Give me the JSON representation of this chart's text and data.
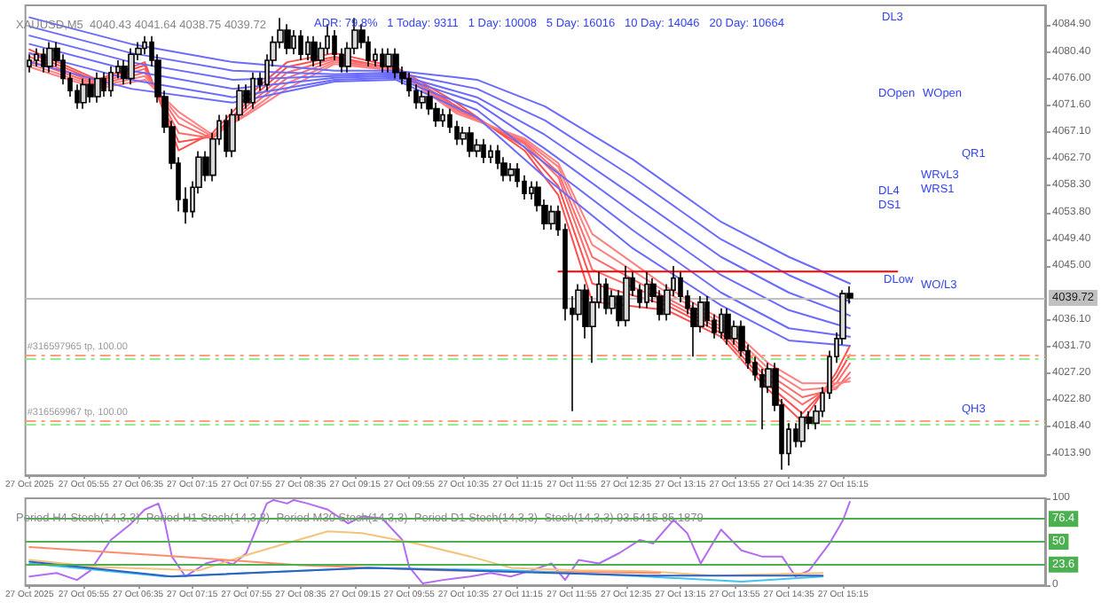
{
  "chart_data": [
    {
      "type": "candlestick",
      "title": "XAUUSD,M5  4040.43 4041.64 4038.75 4039.72",
      "subtitle": "ADR: 79.8%   1 Today: 9311   1 Day: 10008   5 Day: 16016   10 Day: 14046   20 Day: 10664",
      "color": "#000000",
      "grid": false,
      "marker": "none",
      "xlim": [
        "2025-10-27T05:12",
        "2025-10-27T17:44"
      ],
      "xticks": [
        {
          "value": "2025-10-27T05:15",
          "label": "27 Oct 2025"
        },
        {
          "value": "2025-10-27T05:55",
          "label": "27 Oct 05:55"
        },
        {
          "value": "2025-10-27T06:35",
          "label": "27 Oct 06:35"
        },
        {
          "value": "2025-10-27T07:15",
          "label": "27 Oct 07:15"
        },
        {
          "value": "2025-10-27T07:55",
          "label": "27 Oct 07:55"
        },
        {
          "value": "2025-10-27T08:35",
          "label": "27 Oct 08:35"
        },
        {
          "value": "2025-10-27T09:15",
          "label": "27 Oct 09:15"
        },
        {
          "value": "2025-10-27T09:55",
          "label": "27 Oct 09:55"
        },
        {
          "value": "2025-10-27T10:35",
          "label": "27 Oct 10:35"
        },
        {
          "value": "2025-10-27T11:15",
          "label": "27 Oct 11:15"
        },
        {
          "value": "2025-10-27T11:55",
          "label": "27 Oct 11:55"
        },
        {
          "value": "2025-10-27T12:35",
          "label": "27 Oct 12:35"
        },
        {
          "value": "2025-10-27T13:15",
          "label": "27 Oct 13:15"
        },
        {
          "value": "2025-10-27T13:55",
          "label": "27 Oct 13:55"
        },
        {
          "value": "2025-10-27T14:35",
          "label": "27 Oct 14:35"
        },
        {
          "value": "2025-10-27T15:15",
          "label": "27 Oct 15:15"
        }
      ],
      "ylim": [
        4010.4,
        4088.1
      ],
      "yticks": [
        {
          "value": 4013.9,
          "label": "4013.90"
        },
        {
          "value": 4018.4,
          "label": "4018.40"
        },
        {
          "value": 4022.8,
          "label": "4022.80"
        },
        {
          "value": 4027.2,
          "label": "4027.20"
        },
        {
          "value": 4031.7,
          "label": "4031.70"
        },
        {
          "value": 4036.1,
          "label": "4036.10"
        },
        {
          "value": 4045,
          "label": "4045.00"
        },
        {
          "value": 4049.4,
          "label": "4049.40"
        },
        {
          "value": 4053.8,
          "label": "4053.80"
        },
        {
          "value": 4058.3,
          "label": "4058.30"
        },
        {
          "value": 4062.7,
          "label": "4062.70"
        },
        {
          "value": 4067.1,
          "label": "4067.10"
        },
        {
          "value": 4071.6,
          "label": "4071.60"
        },
        {
          "value": 4076,
          "label": "4076.00"
        },
        {
          "value": 4080.4,
          "label": "4080.40"
        },
        {
          "value": 4084.9,
          "label": "4084.90"
        }
      ],
      "x": [
        "2025-10-27T05:15",
        "2025-10-27T05:20",
        "2025-10-27T05:25",
        "2025-10-27T05:30",
        "2025-10-27T05:35",
        "2025-10-27T05:40",
        "2025-10-27T05:45",
        "2025-10-27T05:50",
        "2025-10-27T05:55",
        "2025-10-27T06:00",
        "2025-10-27T06:05",
        "2025-10-27T06:10",
        "2025-10-27T06:15",
        "2025-10-27T06:20",
        "2025-10-27T06:25",
        "2025-10-27T06:30",
        "2025-10-27T06:35",
        "2025-10-27T06:40",
        "2025-10-27T06:45",
        "2025-10-27T06:50",
        "2025-10-27T06:55",
        "2025-10-27T07:00",
        "2025-10-27T07:05",
        "2025-10-27T07:10",
        "2025-10-27T07:15",
        "2025-10-27T07:20",
        "2025-10-27T07:25",
        "2025-10-27T07:30",
        "2025-10-27T07:35",
        "2025-10-27T07:40",
        "2025-10-27T07:45",
        "2025-10-27T07:50",
        "2025-10-27T07:55",
        "2025-10-27T08:00",
        "2025-10-27T08:05",
        "2025-10-27T08:10",
        "2025-10-27T08:15",
        "2025-10-27T08:20",
        "2025-10-27T08:25",
        "2025-10-27T08:30",
        "2025-10-27T08:35",
        "2025-10-27T08:40",
        "2025-10-27T08:45",
        "2025-10-27T08:50",
        "2025-10-27T08:55",
        "2025-10-27T09:00",
        "2025-10-27T09:05",
        "2025-10-27T09:10",
        "2025-10-27T09:15",
        "2025-10-27T09:20",
        "2025-10-27T09:25",
        "2025-10-27T09:30",
        "2025-10-27T09:35",
        "2025-10-27T09:40",
        "2025-10-27T09:45",
        "2025-10-27T09:50",
        "2025-10-27T09:55",
        "2025-10-27T10:00",
        "2025-10-27T10:05",
        "2025-10-27T10:10",
        "2025-10-27T10:15",
        "2025-10-27T10:20",
        "2025-10-27T10:25",
        "2025-10-27T10:30",
        "2025-10-27T10:35",
        "2025-10-27T10:40",
        "2025-10-27T10:45",
        "2025-10-27T10:50",
        "2025-10-27T10:55",
        "2025-10-27T11:00",
        "2025-10-27T11:05",
        "2025-10-27T11:10",
        "2025-10-27T11:15",
        "2025-10-27T11:20",
        "2025-10-27T11:25",
        "2025-10-27T11:30",
        "2025-10-27T11:35",
        "2025-10-27T11:40",
        "2025-10-27T11:45",
        "2025-10-27T11:50",
        "2025-10-27T11:55",
        "2025-10-27T12:00",
        "2025-10-27T12:05",
        "2025-10-27T12:10",
        "2025-10-27T12:15",
        "2025-10-27T12:20",
        "2025-10-27T12:25",
        "2025-10-27T12:30",
        "2025-10-27T12:35",
        "2025-10-27T12:40",
        "2025-10-27T12:45",
        "2025-10-27T12:50",
        "2025-10-27T12:55",
        "2025-10-27T13:00",
        "2025-10-27T13:05",
        "2025-10-27T13:10",
        "2025-10-27T13:15",
        "2025-10-27T13:20",
        "2025-10-27T13:25",
        "2025-10-27T13:30",
        "2025-10-27T13:35",
        "2025-10-27T13:40",
        "2025-10-27T13:45",
        "2025-10-27T13:50",
        "2025-10-27T13:55",
        "2025-10-27T14:00",
        "2025-10-27T14:05",
        "2025-10-27T14:10",
        "2025-10-27T14:15",
        "2025-10-27T14:20",
        "2025-10-27T14:25",
        "2025-10-27T14:30",
        "2025-10-27T14:35",
        "2025-10-27T14:40",
        "2025-10-27T14:45",
        "2025-10-27T14:50",
        "2025-10-27T14:55",
        "2025-10-27T15:00",
        "2025-10-27T15:05",
        "2025-10-27T15:10",
        "2025-10-27T15:15",
        "2025-10-27T15:20"
      ],
      "ohlc": [
        [
          4078,
          4080,
          4077,
          4079
        ],
        [
          4079,
          4081,
          4078,
          4080
        ],
        [
          4080,
          4081,
          4077,
          4078
        ],
        [
          4078,
          4082,
          4077,
          4081
        ],
        [
          4081,
          4082,
          4078,
          4079
        ],
        [
          4079,
          4080,
          4075,
          4076
        ],
        [
          4076,
          4077,
          4073,
          4074
        ],
        [
          4074,
          4075,
          4071,
          4072
        ],
        [
          4072,
          4076,
          4071,
          4075
        ],
        [
          4075,
          4076,
          4072,
          4073
        ],
        [
          4073,
          4077,
          4072,
          4076
        ],
        [
          4076,
          4077,
          4073,
          4074
        ],
        [
          4074,
          4078,
          4073,
          4077
        ],
        [
          4077,
          4079,
          4076,
          4078
        ],
        [
          4078,
          4079,
          4075,
          4076
        ],
        [
          4076,
          4081,
          4075,
          4080
        ],
        [
          4080,
          4082,
          4079,
          4081
        ],
        [
          4081,
          4083,
          4080,
          4082
        ],
        [
          4082,
          4083,
          4078,
          4079
        ],
        [
          4079,
          4080,
          4072,
          4073
        ],
        [
          4073,
          4074,
          4067,
          4068
        ],
        [
          4068,
          4069,
          4061,
          4062
        ],
        [
          4062,
          4063,
          4054,
          4056
        ],
        [
          4056,
          4058,
          4052,
          4054
        ],
        [
          4054,
          4059,
          4053,
          4058
        ],
        [
          4058,
          4064,
          4057,
          4063
        ],
        [
          4063,
          4064,
          4059,
          4060
        ],
        [
          4060,
          4067,
          4059,
          4066
        ],
        [
          4066,
          4070,
          4065,
          4069
        ],
        [
          4069,
          4070,
          4063,
          4064
        ],
        [
          4064,
          4071,
          4063,
          4070
        ],
        [
          4070,
          4075,
          4069,
          4074
        ],
        [
          4074,
          4075,
          4071,
          4072
        ],
        [
          4072,
          4077,
          4071,
          4076
        ],
        [
          4076,
          4077,
          4074,
          4075
        ],
        [
          4075,
          4080,
          4074,
          4079
        ],
        [
          4079,
          4083,
          4078,
          4082
        ],
        [
          4082,
          4086,
          4081,
          4084
        ],
        [
          4084,
          4085,
          4080,
          4081
        ],
        [
          4081,
          4084,
          4080,
          4083
        ],
        [
          4083,
          4084,
          4079,
          4080
        ],
        [
          4080,
          4083,
          4079,
          4082
        ],
        [
          4082,
          4083,
          4078,
          4079
        ],
        [
          4079,
          4082,
          4078,
          4081
        ],
        [
          4081,
          4085,
          4080,
          4083
        ],
        [
          4083,
          4084,
          4079,
          4080
        ],
        [
          4080,
          4081,
          4077,
          4078
        ],
        [
          4078,
          4082,
          4077,
          4081
        ],
        [
          4081,
          4086,
          4080,
          4084
        ],
        [
          4084,
          4085,
          4081,
          4082
        ],
        [
          4082,
          4083,
          4078,
          4079
        ],
        [
          4079,
          4081,
          4078,
          4080
        ],
        [
          4080,
          4081,
          4077,
          4078
        ],
        [
          4078,
          4081,
          4077,
          4080
        ],
        [
          4080,
          4081,
          4076,
          4077
        ],
        [
          4077,
          4078,
          4075,
          4076
        ],
        [
          4076,
          4077,
          4073,
          4074
        ],
        [
          4074,
          4075,
          4071,
          4072
        ],
        [
          4072,
          4074,
          4071,
          4073
        ],
        [
          4073,
          4074,
          4070,
          4071
        ],
        [
          4071,
          4072,
          4068,
          4069
        ],
        [
          4069,
          4071,
          4068,
          4070
        ],
        [
          4070,
          4071,
          4067,
          4068
        ],
        [
          4068,
          4069,
          4065,
          4066
        ],
        [
          4066,
          4068,
          4065,
          4067
        ],
        [
          4067,
          4068,
          4063,
          4064
        ],
        [
          4064,
          4066,
          4063,
          4065
        ],
        [
          4065,
          4066,
          4062,
          4063
        ],
        [
          4063,
          4065,
          4062,
          4064
        ],
        [
          4064,
          4065,
          4061,
          4062
        ],
        [
          4062,
          4063,
          4059,
          4060
        ],
        [
          4060,
          4062,
          4059,
          4061
        ],
        [
          4061,
          4062,
          4058,
          4059
        ],
        [
          4059,
          4060,
          4056,
          4057
        ],
        [
          4057,
          4059,
          4056,
          4058
        ],
        [
          4058,
          4059,
          4054,
          4055
        ],
        [
          4055,
          4056,
          4051,
          4052
        ],
        [
          4052,
          4055,
          4051,
          4054
        ],
        [
          4054,
          4055,
          4050,
          4051
        ],
        [
          4051,
          4052,
          4036,
          4038
        ],
        [
          4038,
          4040,
          4021,
          4037
        ],
        [
          4037,
          4042,
          4036,
          4041
        ],
        [
          4041,
          4042,
          4033,
          4035
        ],
        [
          4035,
          4040,
          4029,
          4039
        ],
        [
          4039,
          4044,
          4038,
          4042
        ],
        [
          4042,
          4043,
          4037,
          4038
        ],
        [
          4038,
          4041,
          4037,
          4040
        ],
        [
          4040,
          4041,
          4035,
          4036
        ],
        [
          4036,
          4045,
          4035,
          4043
        ],
        [
          4043,
          4044,
          4040,
          4041
        ],
        [
          4041,
          4042,
          4038,
          4039
        ],
        [
          4039,
          4044,
          4038,
          4042
        ],
        [
          4042,
          4043,
          4039,
          4040
        ],
        [
          4040,
          4041,
          4036,
          4037
        ],
        [
          4037,
          4042,
          4036,
          4041
        ],
        [
          4041,
          4045,
          4040,
          4043
        ],
        [
          4043,
          4044,
          4039,
          4040
        ],
        [
          4040,
          4041,
          4037,
          4038
        ],
        [
          4038,
          4039,
          4030,
          4035
        ],
        [
          4035,
          4040,
          4034,
          4039
        ],
        [
          4039,
          4040,
          4035,
          4036
        ],
        [
          4036,
          4037,
          4033,
          4034
        ],
        [
          4034,
          4038,
          4033,
          4037
        ],
        [
          4037,
          4038,
          4032,
          4033
        ],
        [
          4033,
          4036,
          4032,
          4035
        ],
        [
          4035,
          4036,
          4030,
          4031
        ],
        [
          4031,
          4032,
          4028,
          4029
        ],
        [
          4029,
          4030,
          4026,
          4027
        ],
        [
          4027,
          4028,
          4018,
          4025
        ],
        [
          4025,
          4029,
          4024,
          4028
        ],
        [
          4028,
          4029,
          4021,
          4022
        ],
        [
          4022,
          4023,
          4011.3,
          4014
        ],
        [
          4014,
          4019,
          4012,
          4018
        ],
        [
          4018,
          4019,
          4015,
          4016
        ],
        [
          4016,
          4021,
          4015,
          4020
        ],
        [
          4020,
          4021,
          4018,
          4019
        ],
        [
          4019,
          4022,
          4018,
          4021
        ],
        [
          4021,
          4025,
          4020,
          4024
        ],
        [
          4024,
          4031,
          4023,
          4030
        ],
        [
          4030,
          4034,
          4029,
          4033
        ],
        [
          4033,
          4041,
          4032,
          4040.43
        ],
        [
          4040.43,
          4041.64,
          4038.75,
          4039.72
        ]
      ],
      "series": [
        {
          "type": "line",
          "color": "#ff5050",
          "x": [
            "2025-10-27T05:15",
            "2025-10-27T06:05",
            "2025-10-27T06:40",
            "2025-10-27T07:05",
            "2025-10-27T07:30",
            "2025-10-27T07:55",
            "2025-10-27T08:25",
            "2025-10-27T09:00",
            "2025-10-27T09:45",
            "2025-10-27T10:30",
            "2025-10-27T11:20",
            "2025-10-27T11:45",
            "2025-10-27T12:10",
            "2025-10-27T13:05",
            "2025-10-27T13:45",
            "2025-10-27T14:20",
            "2025-10-27T14:45",
            "2025-10-27T15:10",
            "2025-10-27T15:20"
          ],
          "values": [
            4080.8,
            4075.8,
            4078.7,
            4064.1,
            4067.0,
            4072.9,
            4078.7,
            4080.2,
            4077.9,
            4072.0,
            4064.1,
            4056.7,
            4039.1,
            4037.7,
            4033.3,
            4024.5,
            4019.2,
            4027.4,
            4031.8
          ]
        },
        {
          "type": "line",
          "color": "#ff5050",
          "x": [
            "2025-10-27T05:15",
            "2025-10-27T06:05",
            "2025-10-27T06:40",
            "2025-10-27T07:05",
            "2025-10-27T07:30",
            "2025-10-27T07:55",
            "2025-10-27T08:25",
            "2025-10-27T09:00",
            "2025-10-27T09:45",
            "2025-10-27T10:30",
            "2025-10-27T11:20",
            "2025-10-27T11:45",
            "2025-10-27T12:10",
            "2025-10-27T13:05",
            "2025-10-27T13:45",
            "2025-10-27T14:20",
            "2025-10-27T14:45",
            "2025-10-27T15:10",
            "2025-10-27T15:20"
          ],
          "values": [
            4080.2,
            4075.5,
            4078.2,
            4065.5,
            4066.4,
            4072.0,
            4077.9,
            4079.6,
            4077.6,
            4071.4,
            4064.7,
            4058.2,
            4042.1,
            4038.5,
            4033.9,
            4025.3,
            4020.6,
            4026.5,
            4030.3
          ]
        },
        {
          "type": "line",
          "color": "#ff6a6a",
          "x": [
            "2025-10-27T05:15",
            "2025-10-27T06:05",
            "2025-10-27T06:40",
            "2025-10-27T07:05",
            "2025-10-27T07:30",
            "2025-10-27T07:55",
            "2025-10-27T08:25",
            "2025-10-27T09:00",
            "2025-10-27T09:45",
            "2025-10-27T10:30",
            "2025-10-27T11:20",
            "2025-10-27T11:45",
            "2025-10-27T12:10",
            "2025-10-27T13:05",
            "2025-10-27T13:45",
            "2025-10-27T14:20",
            "2025-10-27T14:45",
            "2025-10-27T15:10",
            "2025-10-27T15:20"
          ],
          "values": [
            4079.6,
            4075.2,
            4077.6,
            4067.0,
            4066.1,
            4071.4,
            4077.0,
            4079.3,
            4077.6,
            4071.1,
            4065.2,
            4059.7,
            4044.4,
            4039.1,
            4034.5,
            4026.2,
            4022.1,
            4025.6,
            4028.9
          ]
        },
        {
          "type": "line",
          "color": "#ff6a6a",
          "x": [
            "2025-10-27T05:15",
            "2025-10-27T06:05",
            "2025-10-27T06:40",
            "2025-10-27T07:05",
            "2025-10-27T07:30",
            "2025-10-27T07:55",
            "2025-10-27T08:25",
            "2025-10-27T09:00",
            "2025-10-27T09:45",
            "2025-10-27T10:30",
            "2025-10-27T11:20",
            "2025-10-27T11:45",
            "2025-10-27T12:10",
            "2025-10-27T13:05",
            "2025-10-27T13:45",
            "2025-10-27T14:20",
            "2025-10-27T14:45",
            "2025-10-27T15:10",
            "2025-10-27T15:20"
          ],
          "values": [
            4079.0,
            4074.9,
            4077.0,
            4068.5,
            4066.1,
            4070.8,
            4076.1,
            4079.0,
            4077.3,
            4070.8,
            4065.5,
            4060.5,
            4046.5,
            4039.7,
            4035.0,
            4027.1,
            4023.3,
            4024.7,
            4027.4
          ]
        },
        {
          "type": "line",
          "color": "#ff8080",
          "x": [
            "2025-10-27T05:15",
            "2025-10-27T06:05",
            "2025-10-27T06:40",
            "2025-10-27T07:05",
            "2025-10-27T07:30",
            "2025-10-27T07:55",
            "2025-10-27T08:25",
            "2025-10-27T09:00",
            "2025-10-27T09:45",
            "2025-10-27T10:30",
            "2025-10-27T11:20",
            "2025-10-27T11:45",
            "2025-10-27T12:10",
            "2025-10-27T13:05",
            "2025-10-27T13:45",
            "2025-10-27T14:20",
            "2025-10-27T14:45",
            "2025-10-27T15:10",
            "2025-10-27T15:20"
          ],
          "values": [
            4078.4,
            4074.6,
            4076.4,
            4069.6,
            4066.4,
            4070.2,
            4075.2,
            4078.7,
            4077.3,
            4070.5,
            4065.8,
            4061.4,
            4048.5,
            4040.6,
            4035.6,
            4028.0,
            4024.5,
            4025.0,
            4026.5
          ]
        },
        {
          "type": "line",
          "color": "#ff8080",
          "x": [
            "2025-10-27T05:15",
            "2025-10-27T06:05",
            "2025-10-27T06:40",
            "2025-10-27T07:05",
            "2025-10-27T07:30",
            "2025-10-27T07:55",
            "2025-10-27T08:25",
            "2025-10-27T09:00",
            "2025-10-27T09:45",
            "2025-10-27T10:30",
            "2025-10-27T11:20",
            "2025-10-27T11:45",
            "2025-10-27T12:10",
            "2025-10-27T13:05",
            "2025-10-27T13:45",
            "2025-10-27T14:20",
            "2025-10-27T14:45",
            "2025-10-27T15:10",
            "2025-10-27T15:20"
          ],
          "values": [
            4077.9,
            4074.3,
            4075.8,
            4070.5,
            4066.7,
            4069.9,
            4074.3,
            4078.4,
            4077.3,
            4070.2,
            4066.1,
            4062.0,
            4050.3,
            4041.5,
            4036.2,
            4028.9,
            4025.6,
            4025.6,
            4025.9
          ]
        },
        {
          "type": "line",
          "color": "#6a6aff",
          "x": [
            "2025-10-27T05:15",
            "2025-10-27T06:30",
            "2025-10-27T07:45",
            "2025-10-27T09:00",
            "2025-10-27T09:45",
            "2025-10-27T10:45",
            "2025-10-27T11:35",
            "2025-10-27T12:40",
            "2025-10-27T13:45",
            "2025-10-27T14:35",
            "2025-10-27T15:20"
          ],
          "values": [
            4086.1,
            4081.7,
            4078.7,
            4077.3,
            4077.3,
            4075.8,
            4071.4,
            4062.6,
            4052.3,
            4046.5,
            4042.1
          ]
        },
        {
          "type": "line",
          "color": "#6a6aff",
          "x": [
            "2025-10-27T05:15",
            "2025-10-27T06:30",
            "2025-10-27T07:45",
            "2025-10-27T09:00",
            "2025-10-27T09:45",
            "2025-10-27T10:45",
            "2025-10-27T11:35",
            "2025-10-27T12:40",
            "2025-10-27T13:45",
            "2025-10-27T14:35",
            "2025-10-27T15:20"
          ],
          "values": [
            4084.6,
            4080.2,
            4077.3,
            4076.7,
            4077.0,
            4074.3,
            4069.1,
            4059.7,
            4049.4,
            4043.5,
            4039.1
          ]
        },
        {
          "type": "line",
          "color": "#6a6aff",
          "x": [
            "2025-10-27T05:15",
            "2025-10-27T06:30",
            "2025-10-27T07:45",
            "2025-10-27T09:00",
            "2025-10-27T09:45",
            "2025-10-27T10:45",
            "2025-10-27T11:35",
            "2025-10-27T12:40",
            "2025-10-27T13:45",
            "2025-10-27T14:35",
            "2025-10-27T15:20"
          ],
          "values": [
            4083.1,
            4078.7,
            4075.8,
            4076.4,
            4076.7,
            4072.9,
            4066.7,
            4056.7,
            4046.5,
            4040.6,
            4036.8
          ]
        },
        {
          "type": "line",
          "color": "#6a6aff",
          "x": [
            "2025-10-27T05:15",
            "2025-10-27T06:30",
            "2025-10-27T07:45",
            "2025-10-27T09:00",
            "2025-10-27T09:45",
            "2025-10-27T10:45",
            "2025-10-27T11:35",
            "2025-10-27T12:40",
            "2025-10-27T13:45",
            "2025-10-27T14:35",
            "2025-10-27T15:20"
          ],
          "values": [
            4081.7,
            4077.3,
            4074.3,
            4076.1,
            4076.4,
            4072.0,
            4064.4,
            4053.8,
            4043.5,
            4037.7,
            4034.7
          ]
        },
        {
          "type": "line",
          "color": "#6a6aff",
          "x": [
            "2025-10-27T05:15",
            "2025-10-27T06:30",
            "2025-10-27T07:45",
            "2025-10-27T09:00",
            "2025-10-27T09:45",
            "2025-10-27T10:45",
            "2025-10-27T11:35",
            "2025-10-27T12:40",
            "2025-10-27T13:45",
            "2025-10-27T14:35",
            "2025-10-27T15:20"
          ],
          "values": [
            4080.2,
            4075.8,
            4072.9,
            4075.8,
            4076.1,
            4070.8,
            4062.0,
            4050.9,
            4040.6,
            4034.7,
            4033.3
          ]
        },
        {
          "type": "line",
          "color": "#6a6aff",
          "x": [
            "2025-10-27T05:15",
            "2025-10-27T06:30",
            "2025-10-27T07:45",
            "2025-10-27T09:00",
            "2025-10-27T09:45",
            "2025-10-27T10:45",
            "2025-10-27T11:35",
            "2025-10-27T12:40",
            "2025-10-27T13:45",
            "2025-10-27T14:35",
            "2025-10-27T15:20"
          ],
          "values": [
            4078.7,
            4074.3,
            4072.0,
            4075.5,
            4075.8,
            4069.6,
            4059.7,
            4047.9,
            4038.5,
            4032.7,
            4031.8
          ]
        },
        {
          "type": "line",
          "color": "#ff0000",
          "x": [
            "2025-10-27T11:45",
            "2025-10-27T15:55"
          ],
          "values": [
            4044.1,
            4044.1
          ]
        }
      ],
      "ref_lines": [
        {
          "axis": "y",
          "value": 4039.72,
          "label": "4039.72",
          "color": "#c0c0c0",
          "line_style": "solid"
        },
        {
          "axis": "y",
          "value": 4030.3,
          "label": "#316597965 tp, 100.00",
          "color": "#ffa07a",
          "line_style": "dashed"
        },
        {
          "axis": "y",
          "value": 4029.6,
          "label": null,
          "color": "#90ee90",
          "line_style": "dashed"
        },
        {
          "axis": "y",
          "value": 4019.5,
          "label": "#316569967 tp, 100.00",
          "color": "#ffa07a",
          "line_style": "dashed"
        },
        {
          "axis": "y",
          "value": 4018.8,
          "label": null,
          "color": "#90ee90",
          "line_style": "dashed"
        }
      ],
      "annotations": [
        "DL3",
        "DOpen",
        "WOpen",
        "QR1",
        "WRvL3",
        "WRS1",
        "DL4",
        "DS1",
        {
          "text": "DLow",
          "x": "2025-10-27T15:45",
          "y": 4042.7
        },
        "WO/L3",
        "QH3"
      ]
    },
    {
      "type": "line",
      "title": "Period H4 Stoch(14,3,3)  Period H1 Stoch(14,3,3)  Period M30 Stoch(14,3,3)  Period D1 Stoch(14,3,3)  Stoch(14,3,3) 93.5415 85.1879",
      "grid": false,
      "marker": "none",
      "line_style": "solid",
      "xlim": [
        "2025-10-27T05:12",
        "2025-10-27T17:44"
      ],
      "xticks": [
        {
          "value": "2025-10-27T05:15",
          "label": "27 Oct 2025"
        },
        {
          "value": "2025-10-27T05:55",
          "label": "27 Oct 05:55"
        },
        {
          "value": "2025-10-27T06:35",
          "label": "27 Oct 06:35"
        },
        {
          "value": "2025-10-27T07:15",
          "label": "27 Oct 07:15"
        },
        {
          "value": "2025-10-27T07:55",
          "label": "27 Oct 07:55"
        },
        {
          "value": "2025-10-27T08:35",
          "label": "27 Oct 08:35"
        },
        {
          "value": "2025-10-27T09:15",
          "label": "27 Oct 09:15"
        },
        {
          "value": "2025-10-27T09:55",
          "label": "27 Oct 09:55"
        },
        {
          "value": "2025-10-27T10:35",
          "label": "27 Oct 10:35"
        },
        {
          "value": "2025-10-27T11:15",
          "label": "27 Oct 11:15"
        },
        {
          "value": "2025-10-27T11:55",
          "label": "27 Oct 11:55"
        },
        {
          "value": "2025-10-27T12:35",
          "label": "27 Oct 12:35"
        },
        {
          "value": "2025-10-27T13:15",
          "label": "27 Oct 13:15"
        },
        {
          "value": "2025-10-27T13:55",
          "label": "27 Oct 13:55"
        },
        {
          "value": "2025-10-27T14:35",
          "label": "27 Oct 14:35"
        },
        {
          "value": "2025-10-27T15:15",
          "label": "27 Oct 15:15"
        }
      ],
      "ylim": [
        0,
        100
      ],
      "yticks": [
        0,
        100
      ],
      "series": [
        {
          "color": "#b36bf0",
          "x": [
            "2025-10-27T05:15",
            "2025-10-27T05:35",
            "2025-10-27T05:50",
            "2025-10-27T06:00",
            "2025-10-27T06:15",
            "2025-10-27T06:30",
            "2025-10-27T06:40",
            "2025-10-27T06:50",
            "2025-10-27T06:55",
            "2025-10-27T07:00",
            "2025-10-27T07:10",
            "2025-10-27T07:25",
            "2025-10-27T07:35",
            "2025-10-27T07:45",
            "2025-10-27T07:55",
            "2025-10-27T08:10",
            "2025-10-27T08:15",
            "2025-10-27T08:25",
            "2025-10-27T08:30",
            "2025-10-27T08:40",
            "2025-10-27T08:55",
            "2025-10-27T09:10",
            "2025-10-27T09:20",
            "2025-10-27T09:35",
            "2025-10-27T09:50",
            "2025-10-27T09:55",
            "2025-10-27T10:05",
            "2025-10-27T10:20",
            "2025-10-27T10:40",
            "2025-10-27T10:55",
            "2025-10-27T11:10",
            "2025-10-27T11:25",
            "2025-10-27T11:40",
            "2025-10-27T11:50",
            "2025-10-27T12:00",
            "2025-10-27T12:15",
            "2025-10-27T12:30",
            "2025-10-27T12:45",
            "2025-10-27T12:55",
            "2025-10-27T13:10",
            "2025-10-27T13:20",
            "2025-10-27T13:30",
            "2025-10-27T13:45",
            "2025-10-27T14:00",
            "2025-10-27T14:15",
            "2025-10-27T14:30",
            "2025-10-27T14:40",
            "2025-10-27T14:50",
            "2025-10-27T15:05",
            "2025-10-27T15:15",
            "2025-10-27T15:20"
          ],
          "values": [
            10,
            14,
            6,
            17,
            52,
            71,
            87,
            94,
            71,
            33,
            10,
            25,
            29,
            24,
            37,
            94,
            98,
            94,
            98,
            94,
            87,
            71,
            79,
            77,
            52,
            21,
            2,
            6,
            10,
            14,
            10,
            17,
            25,
            6,
            29,
            25,
            37,
            52,
            48,
            75,
            60,
            25,
            64,
            40,
            33,
            33,
            10,
            17,
            48,
            75,
            96
          ]
        },
        {
          "color": "#f5c27a",
          "x": [
            "2025-10-27T05:15",
            "2025-10-27T06:05",
            "2025-10-27T07:20",
            "2025-10-27T08:00",
            "2025-10-27T08:55",
            "2025-10-27T09:20",
            "2025-10-27T10:00",
            "2025-10-27T10:40",
            "2025-10-27T11:10",
            "2025-10-27T12:00",
            "2025-10-27T12:50",
            "2025-10-27T13:40",
            "2025-10-27T15:00"
          ],
          "values": [
            29,
            21,
            17,
            37,
            62,
            60,
            48,
            33,
            20,
            17,
            16,
            11,
            14
          ]
        },
        {
          "color": "#ff8c6a",
          "x": [
            "2025-10-27T05:15",
            "2025-10-27T06:55",
            "2025-10-27T08:35",
            "2025-10-27T10:20",
            "2025-10-27T13:00"
          ],
          "values": [
            44,
            34,
            23,
            17,
            14
          ]
        },
        {
          "color": "#3fc5ef",
          "x": [
            "2025-10-27T05:15",
            "2025-10-27T06:55",
            "2025-10-27T09:25",
            "2025-10-27T11:10",
            "2025-10-27T12:50",
            "2025-10-27T14:00",
            "2025-10-27T15:00"
          ],
          "values": [
            25,
            10,
            20,
            17,
            10,
            4,
            10
          ]
        },
        {
          "color": "#3060c0",
          "x": [
            "2025-10-27T05:15",
            "2025-10-27T07:00",
            "2025-10-27T09:25",
            "2025-10-27T12:50",
            "2025-10-27T15:00"
          ],
          "values": [
            27,
            10,
            20,
            11,
            11
          ]
        }
      ],
      "ref_lines": [
        {
          "axis": "y",
          "value": 76.4,
          "label": "76.4",
          "color": "#4caf50",
          "line_style": "solid"
        },
        {
          "axis": "y",
          "value": 50,
          "label": "50",
          "color": "#4caf50",
          "line_style": "solid"
        },
        {
          "axis": "y",
          "value": 23.6,
          "label": "23.6",
          "color": "#4caf50",
          "line_style": "solid"
        }
      ]
    }
  ]
}
